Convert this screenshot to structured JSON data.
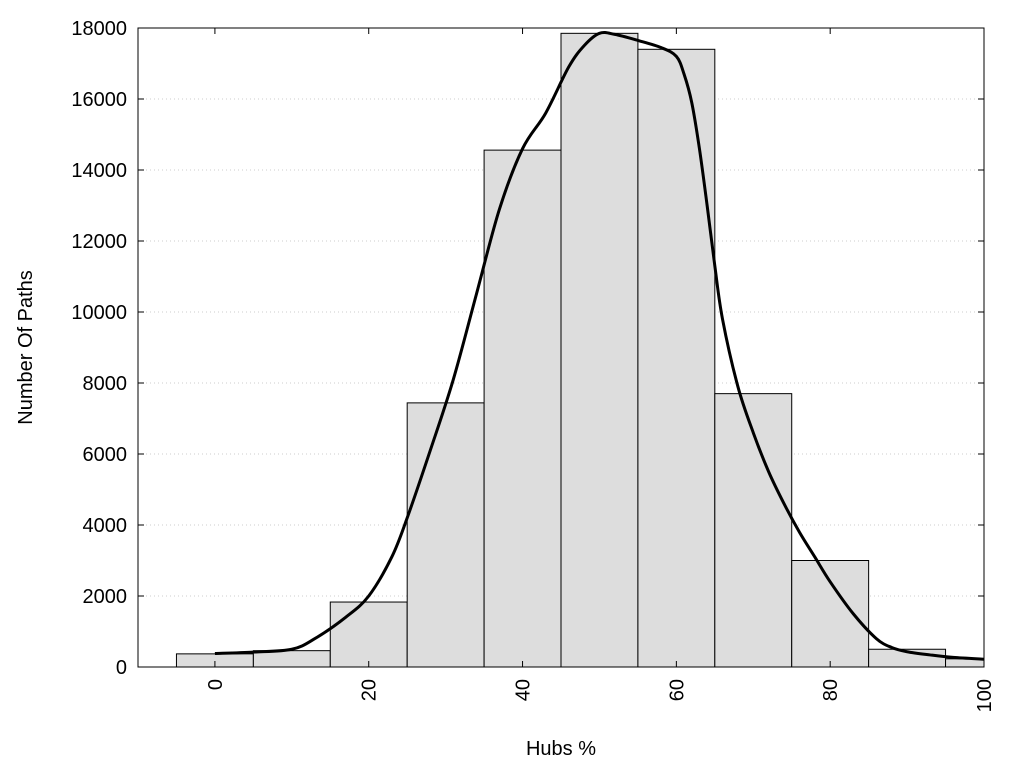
{
  "chart_data": {
    "type": "bar",
    "subtype": "histogram",
    "title": "",
    "xlabel": "Hubs %",
    "ylabel": "Number Of Paths",
    "xlim": [
      -10,
      100
    ],
    "ylim": [
      0,
      18000
    ],
    "x_ticks": [
      0,
      20,
      40,
      60,
      80,
      100
    ],
    "y_ticks": [
      0,
      2000,
      4000,
      6000,
      8000,
      10000,
      12000,
      14000,
      16000,
      18000
    ],
    "grid": "horizontal-dotted",
    "bin_width": 10,
    "bins": [
      {
        "center": 0,
        "value": 370
      },
      {
        "center": 10,
        "value": 460
      },
      {
        "center": 20,
        "value": 1830
      },
      {
        "center": 30,
        "value": 7440
      },
      {
        "center": 40,
        "value": 14560
      },
      {
        "center": 50,
        "value": 17850
      },
      {
        "center": 60,
        "value": 17400
      },
      {
        "center": 70,
        "value": 7700
      },
      {
        "center": 80,
        "value": 3000
      },
      {
        "center": 90,
        "value": 500
      },
      {
        "center": 100,
        "value": 230
      }
    ],
    "curve": {
      "x": [
        0,
        5,
        10,
        13,
        17,
        20,
        23,
        25,
        28,
        31,
        34,
        37,
        40,
        43,
        46,
        48,
        50,
        52,
        55,
        58,
        60,
        61,
        62,
        63,
        64,
        65,
        66,
        68,
        70,
        72,
        74,
        76,
        78,
        80,
        83,
        86,
        88,
        90,
        93,
        96,
        100
      ],
      "y": [
        380,
        420,
        500,
        800,
        1400,
        2000,
        3100,
        4200,
        6100,
        8100,
        10500,
        12900,
        14600,
        15600,
        16900,
        17500,
        17850,
        17820,
        17650,
        17450,
        17200,
        16700,
        15900,
        14600,
        13000,
        11300,
        9800,
        7900,
        6600,
        5500,
        4600,
        3800,
        3100,
        2400,
        1500,
        800,
        550,
        430,
        340,
        270,
        220
      ]
    },
    "colors": {
      "bar_fill": "#dddddd",
      "bar_stroke": "#000000",
      "curve": "#000000",
      "grid": "#cccccc"
    }
  }
}
